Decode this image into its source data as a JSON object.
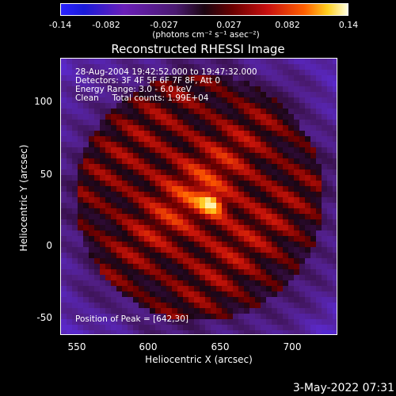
{
  "chart_data": {
    "type": "heatmap",
    "title": "Reconstructed RHESSI Image",
    "xlabel": "Heliocentric X (arcsec)",
    "ylabel": "Heliocentric Y (arcsec)",
    "xlim": [
      538,
      731
    ],
    "ylim": [
      -60,
      129
    ],
    "x_ticks": [
      "550",
      "600",
      "650",
      "700"
    ],
    "y_ticks": [
      "100",
      "50",
      "0",
      "-50"
    ],
    "colorbar": {
      "ticks": [
        "-0.14",
        "-0.082",
        "-0.027",
        "0.027",
        "0.082",
        "0.14"
      ],
      "units": "(photons cm⁻² s⁻¹ asec⁻²)",
      "range": [
        -0.14,
        0.14
      ]
    },
    "annotations": [
      "28-Aug-2004 19:42:52.000 to 19:47:32.000",
      "Detectors: 3F 4F 5F 6F 7F 8F, Att 0",
      "Energy Range: 3.0 - 6.0 keV",
      "Clean     Total counts: 1.99E+04"
    ],
    "peak_label": "Position of Peak = [642,30]",
    "peak": {
      "x": 642,
      "y": 30
    }
  },
  "footer": "3-May-2022 07:31",
  "colors": {
    "background": "#000000",
    "text": "#ffffff"
  }
}
